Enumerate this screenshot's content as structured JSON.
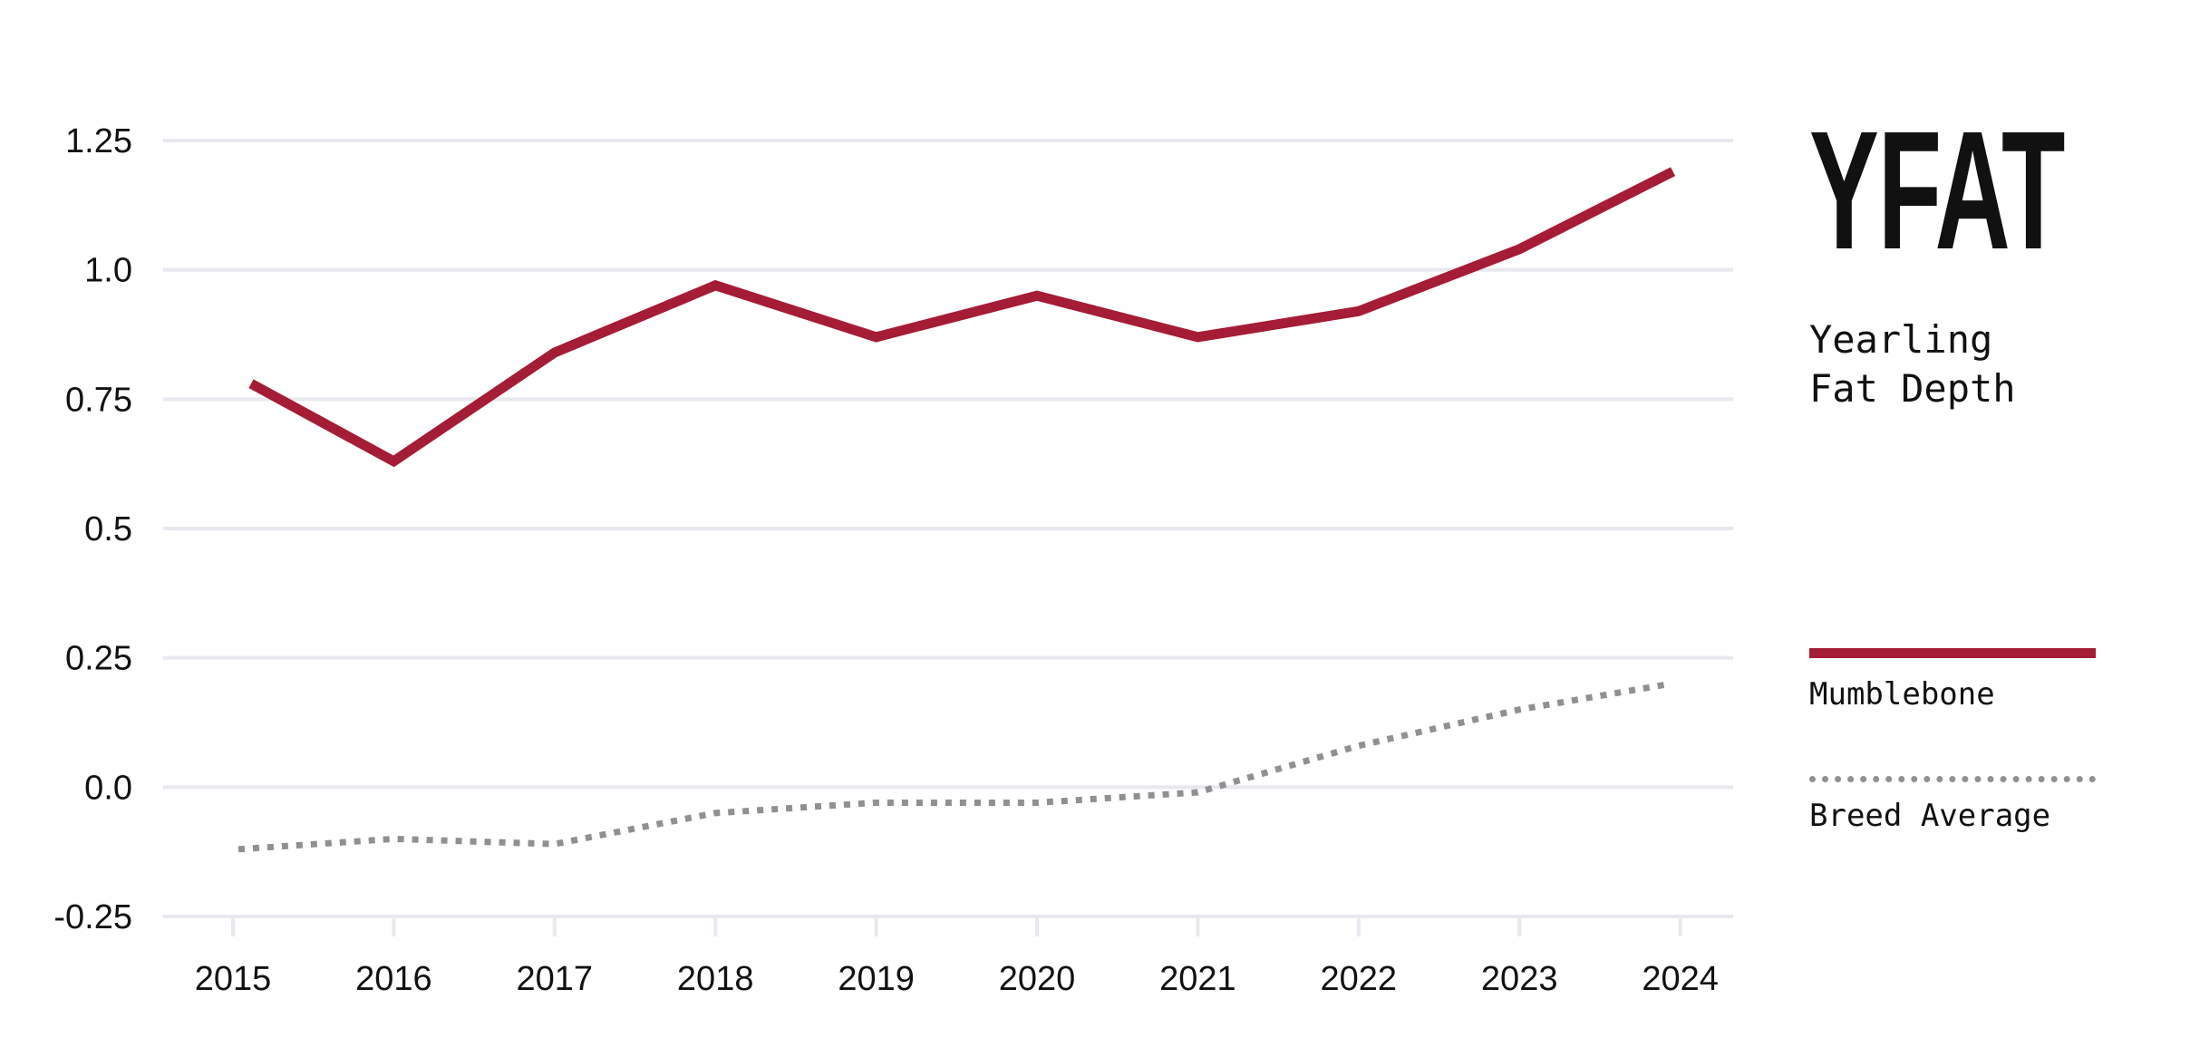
{
  "badge": "YFAT",
  "subtitle": [
    "Yearling",
    "Fat Depth"
  ],
  "colors": {
    "primary": "#a51c36",
    "average": "#909090",
    "grid": "#e8e8ee",
    "text": "#111111"
  },
  "chart_data": {
    "type": "line",
    "categories": [
      "2015",
      "2016",
      "2017",
      "2018",
      "2019",
      "2020",
      "2021",
      "2022",
      "2023",
      "2024"
    ],
    "y_ticks": [
      "1.25",
      "1.0",
      "0.75",
      "0.5",
      "0.25",
      "0.0",
      "-0.25"
    ],
    "ylim": [
      -0.25,
      1.25
    ],
    "grid": true,
    "legend_position": "right",
    "series": [
      {
        "name": "Mumblebone",
        "style": "solid",
        "color": "#a51c36",
        "values": [
          0.78,
          0.63,
          0.84,
          0.97,
          0.87,
          0.95,
          0.87,
          0.92,
          1.04,
          1.19
        ]
      },
      {
        "name": "Breed Average",
        "style": "dotted",
        "color": "#909090",
        "values": [
          -0.12,
          -0.1,
          -0.11,
          -0.05,
          -0.03,
          -0.03,
          -0.01,
          0.08,
          0.15,
          0.2
        ]
      }
    ]
  }
}
